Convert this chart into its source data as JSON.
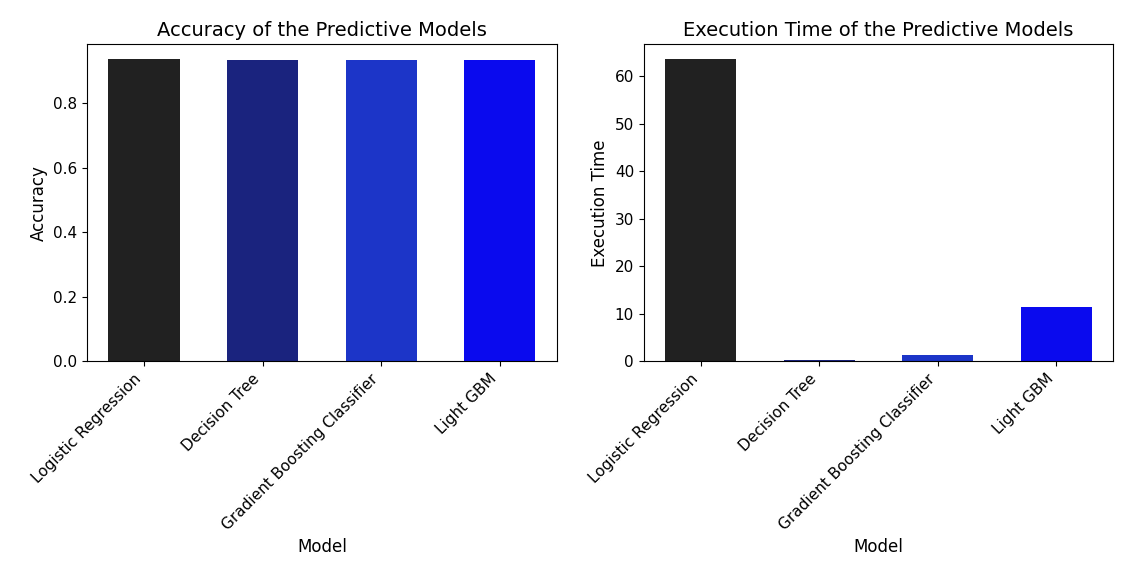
{
  "models": [
    "Logistic Regression",
    "Decision Tree",
    "Gradient Boosting Classifier",
    "Light GBM"
  ],
  "accuracy_values": [
    0.935,
    0.932,
    0.934,
    0.933
  ],
  "execution_values": [
    63.5,
    0.3,
    1.4,
    11.5
  ],
  "accuracy_colors": [
    "#212121",
    "#1a237e",
    "#1c35c8",
    "#0a0aee"
  ],
  "execution_colors": [
    "#212121",
    "#1a237e",
    "#1c35c8",
    "#0a0aee"
  ],
  "title_accuracy": "Accuracy of the Predictive Models",
  "title_execution": "Execution Time of the Predictive Models",
  "xlabel": "Model",
  "ylabel_accuracy": "Accuracy",
  "ylabel_execution": "Execution Time",
  "title_fontsize": 14,
  "label_fontsize": 12,
  "tick_fontsize": 11,
  "bar_width": 0.6
}
